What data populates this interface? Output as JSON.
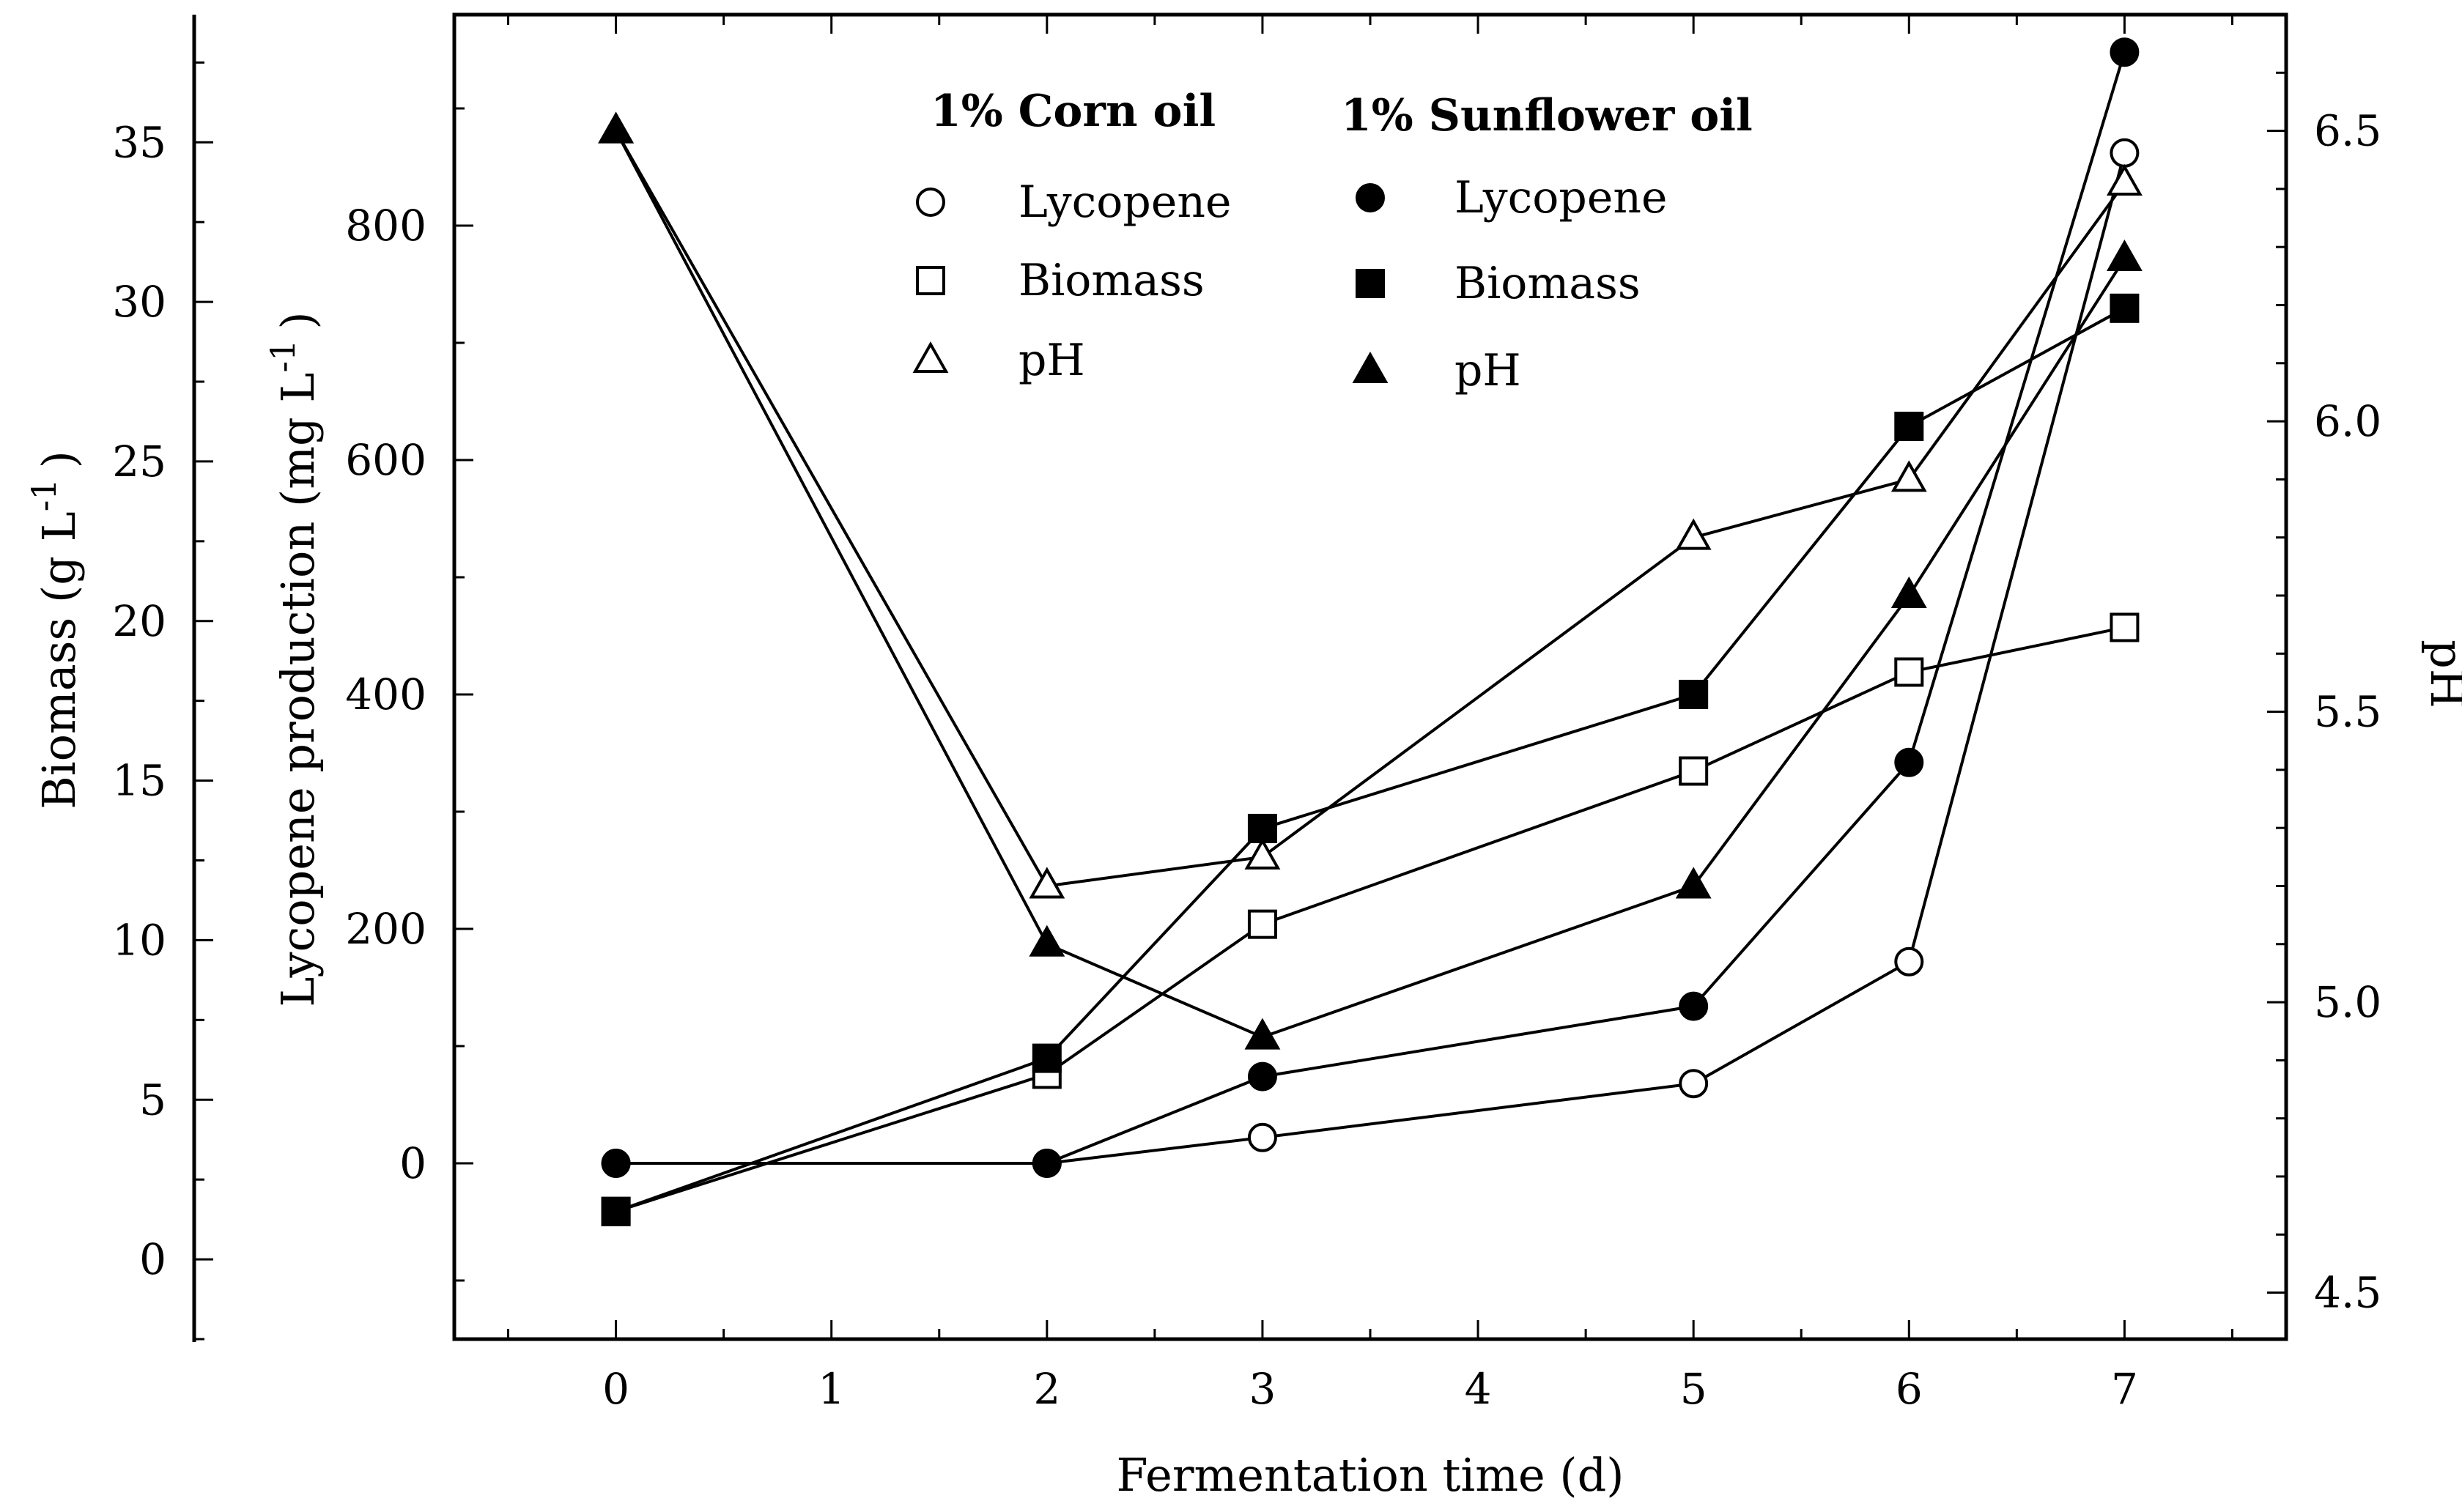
{
  "chart_data": {
    "type": "line",
    "xlabel": "Fermentation time (d)",
    "x_ticks": [
      0,
      1,
      2,
      3,
      4,
      5,
      6,
      7
    ],
    "xlim": [
      -0.75,
      7.75
    ],
    "axes": {
      "lycopene": {
        "label": "Lycopene production (mg L",
        "superscript": "-1",
        "closing": ")",
        "ylim": [
          -150,
          980
        ],
        "ticks": [
          0,
          200,
          400,
          600,
          800
        ]
      },
      "biomass": {
        "label": "Biomass (g L",
        "superscript": "-1",
        "closing": ")",
        "ylim": [
          -2.5,
          39
        ],
        "ticks": [
          0,
          5,
          10,
          15,
          20,
          25,
          30,
          35
        ]
      },
      "ph": {
        "label": "pH",
        "ylim": [
          4.42,
          6.7
        ],
        "ticks": [
          4.5,
          5.0,
          5.5,
          6.0,
          6.5
        ],
        "tick_labels": [
          "4.5",
          "5.0",
          "5.5",
          "6.0",
          "6.5"
        ]
      }
    },
    "legend": {
      "corn_title": "1% Corn oil",
      "sunflower_title": "1% Sunflower oil",
      "items": [
        "Lycopene",
        "Biomass",
        "pH"
      ]
    },
    "series": [
      {
        "name": "Corn oil Lycopene",
        "axis": "lycopene",
        "marker": "circle",
        "filled": false,
        "x": [
          0,
          2,
          3,
          5,
          6,
          7
        ],
        "y": [
          0,
          0,
          22,
          68,
          172,
          862
        ]
      },
      {
        "name": "Sunflower oil Lycopene",
        "axis": "lycopene",
        "marker": "circle",
        "filled": true,
        "x": [
          0,
          2,
          3,
          5,
          6,
          7
        ],
        "y": [
          0,
          0,
          74,
          134,
          342,
          948
        ]
      },
      {
        "name": "Corn oil Biomass",
        "axis": "biomass",
        "marker": "square",
        "filled": false,
        "x": [
          0,
          2,
          3,
          5,
          6,
          7
        ],
        "y": [
          1.5,
          5.8,
          10.5,
          15.3,
          18.4,
          19.8
        ]
      },
      {
        "name": "Sunflower oil Biomass",
        "axis": "biomass",
        "marker": "square",
        "filled": true,
        "x": [
          0,
          2,
          3,
          5,
          6,
          7
        ],
        "y": [
          1.5,
          6.3,
          13.5,
          17.7,
          26.1,
          29.8
        ]
      },
      {
        "name": "Corn oil pH",
        "axis": "ph",
        "marker": "triangle",
        "filled": false,
        "x": [
          0,
          2,
          3,
          5,
          6,
          7
        ],
        "y": [
          6.5,
          5.2,
          5.25,
          5.8,
          5.9,
          6.41
        ]
      },
      {
        "name": "Sunflower oil pH",
        "axis": "ph",
        "marker": "triangle",
        "filled": true,
        "x": [
          0,
          2,
          3,
          5,
          6,
          7
        ],
        "y": [
          6.5,
          5.1,
          4.94,
          5.2,
          5.7,
          6.28
        ]
      }
    ]
  }
}
